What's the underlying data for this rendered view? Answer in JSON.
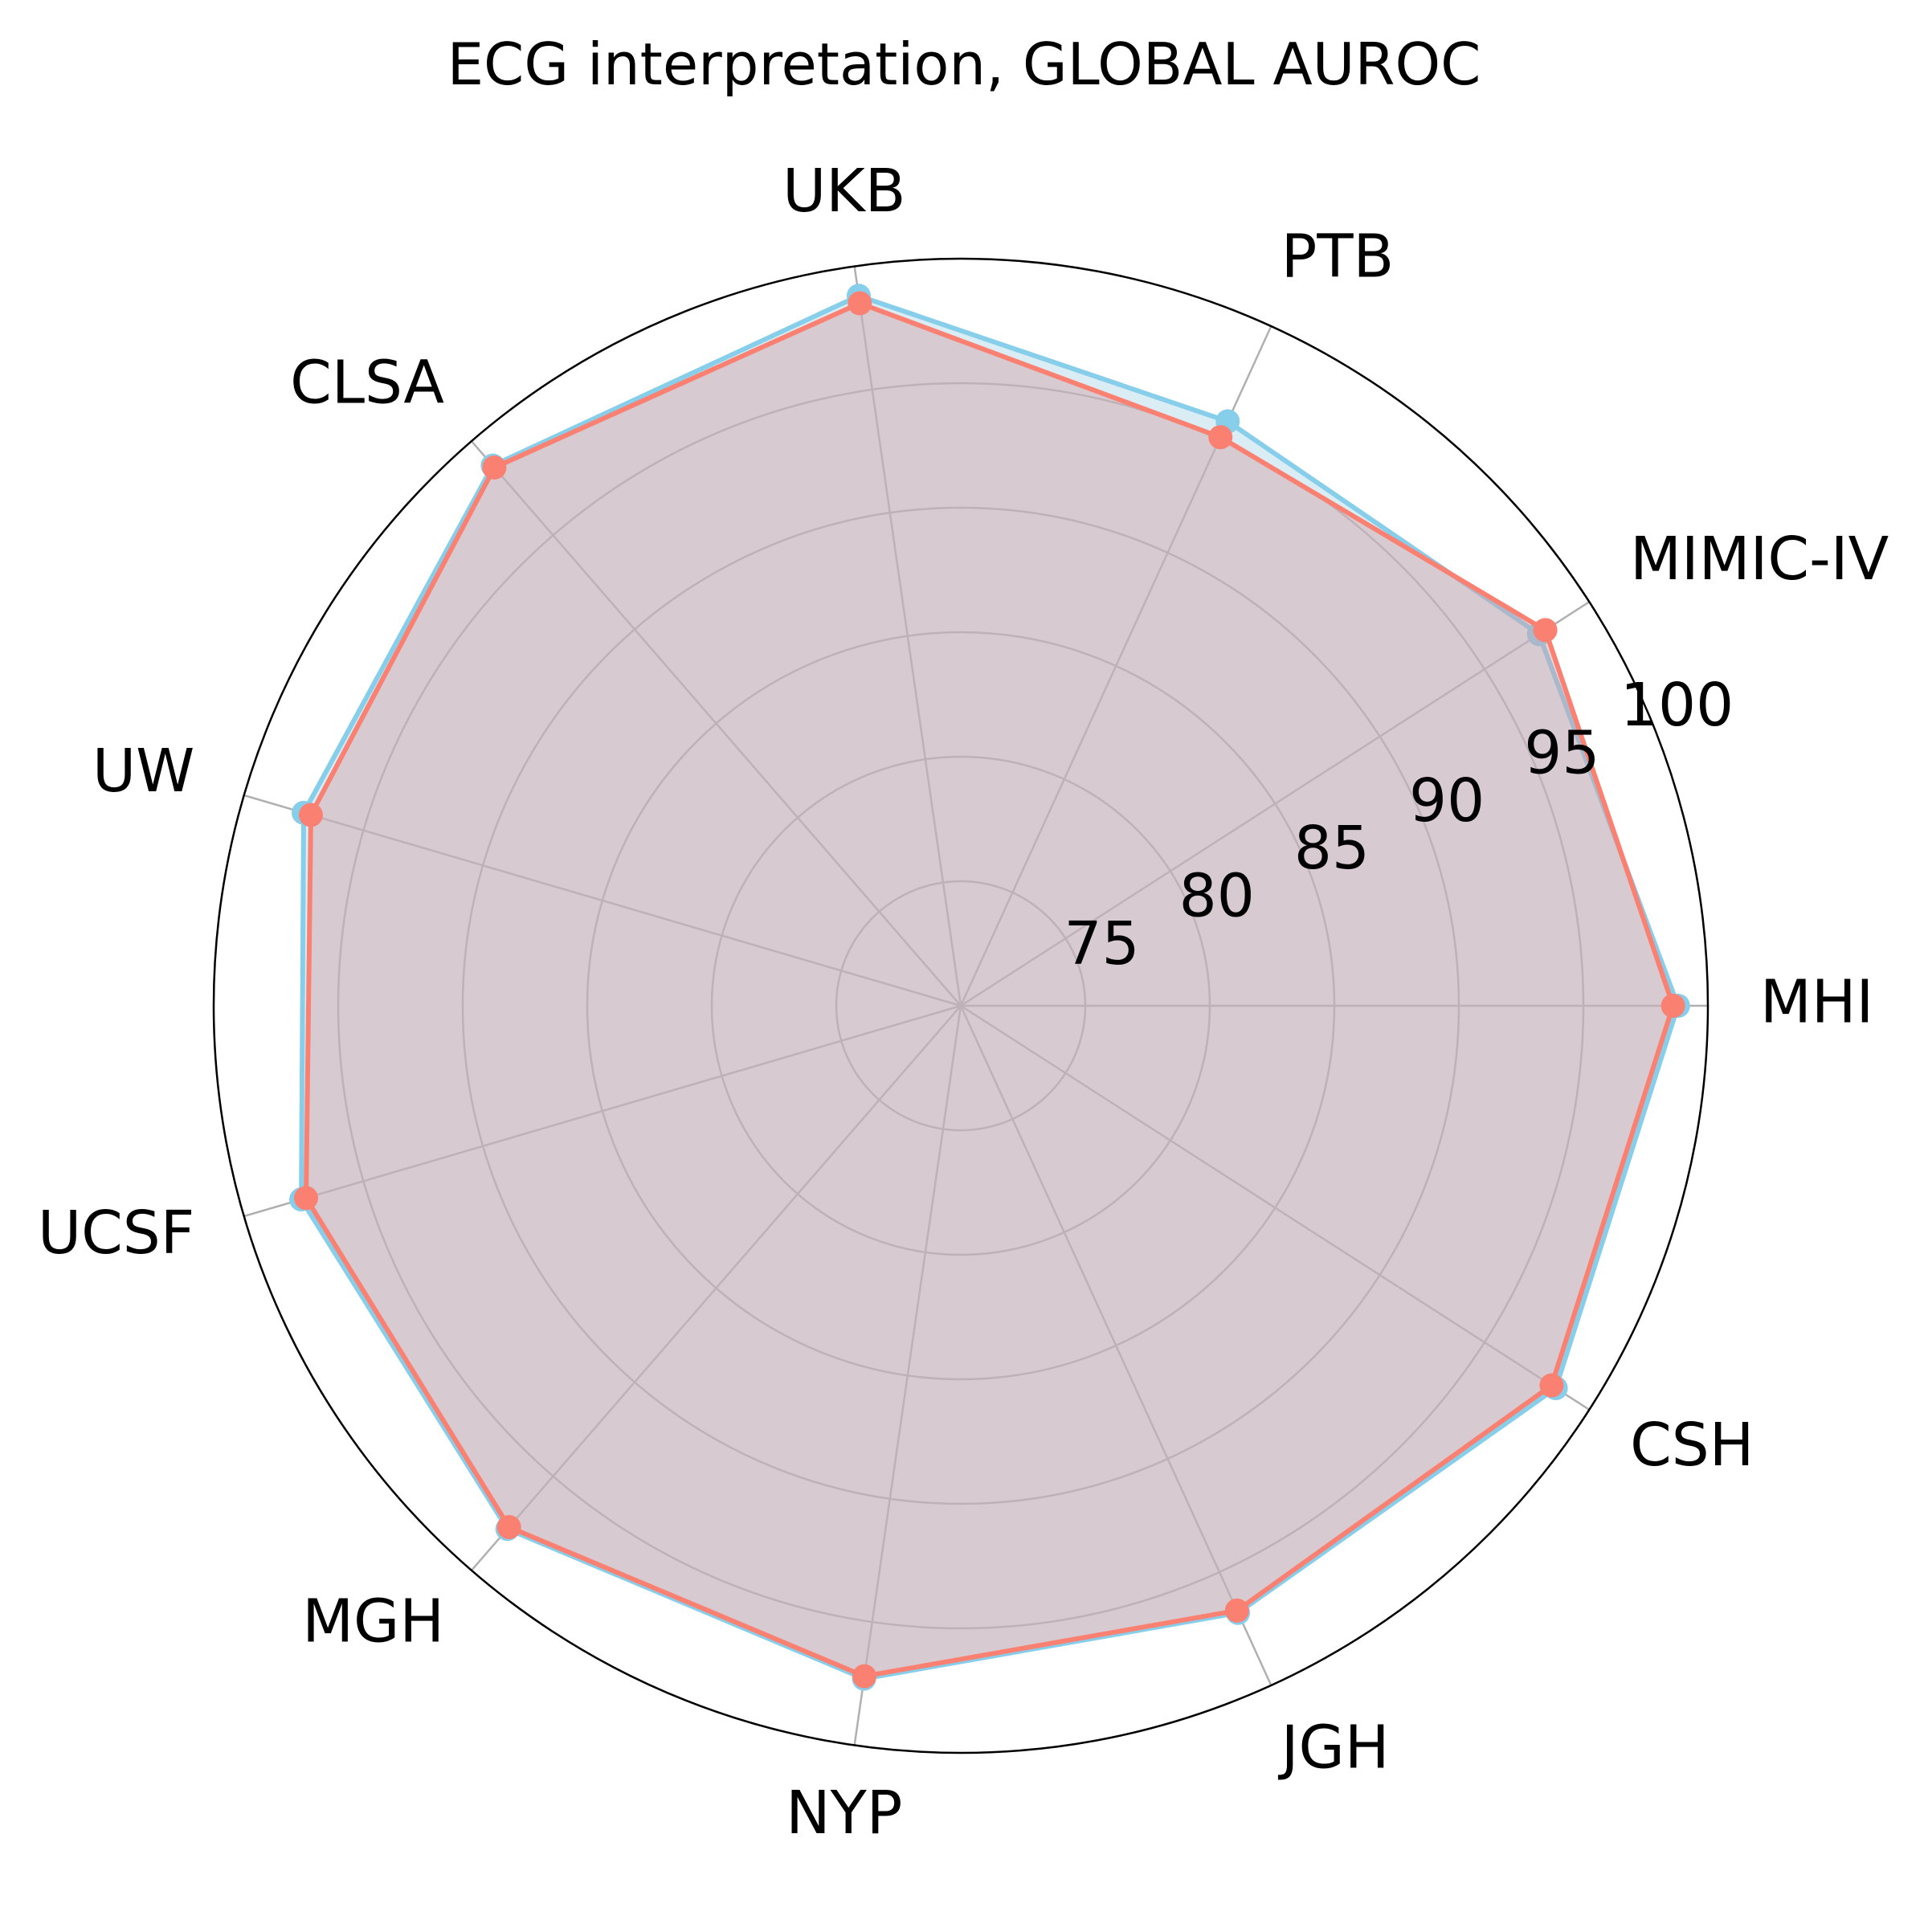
{
  "chart_data": {
    "type": "radar",
    "title": "ECG interpretation, GLOBAL AUROC",
    "categories": [
      "MHI",
      "MIMIC-IV",
      "PTB",
      "UKB",
      "CLSA",
      "UW",
      "UCSF",
      "MGH",
      "NYP",
      "JGH",
      "CSH"
    ],
    "r_ticks": [
      75,
      80,
      85,
      90,
      95,
      100
    ],
    "r_tick_labels": [
      "75",
      "80",
      "85",
      "90",
      "95",
      "100"
    ],
    "rlim": [
      70,
      100
    ],
    "grid": true,
    "series": [
      {
        "color": "#87ceeb",
        "fill_color": "#add8e6",
        "values": [
          98.8,
          97.6,
          95.8,
          98.8,
          98.7,
          97.5,
          97.6,
          97.8,
          97.3,
          96.8,
          98.4
        ]
      },
      {
        "color": "#fa8072",
        "fill_color": "#d2a0a3",
        "values": [
          98.6,
          97.9,
          95.1,
          98.5,
          98.6,
          97.2,
          97.4,
          97.7,
          97.2,
          96.7,
          98.2
        ]
      }
    ]
  }
}
